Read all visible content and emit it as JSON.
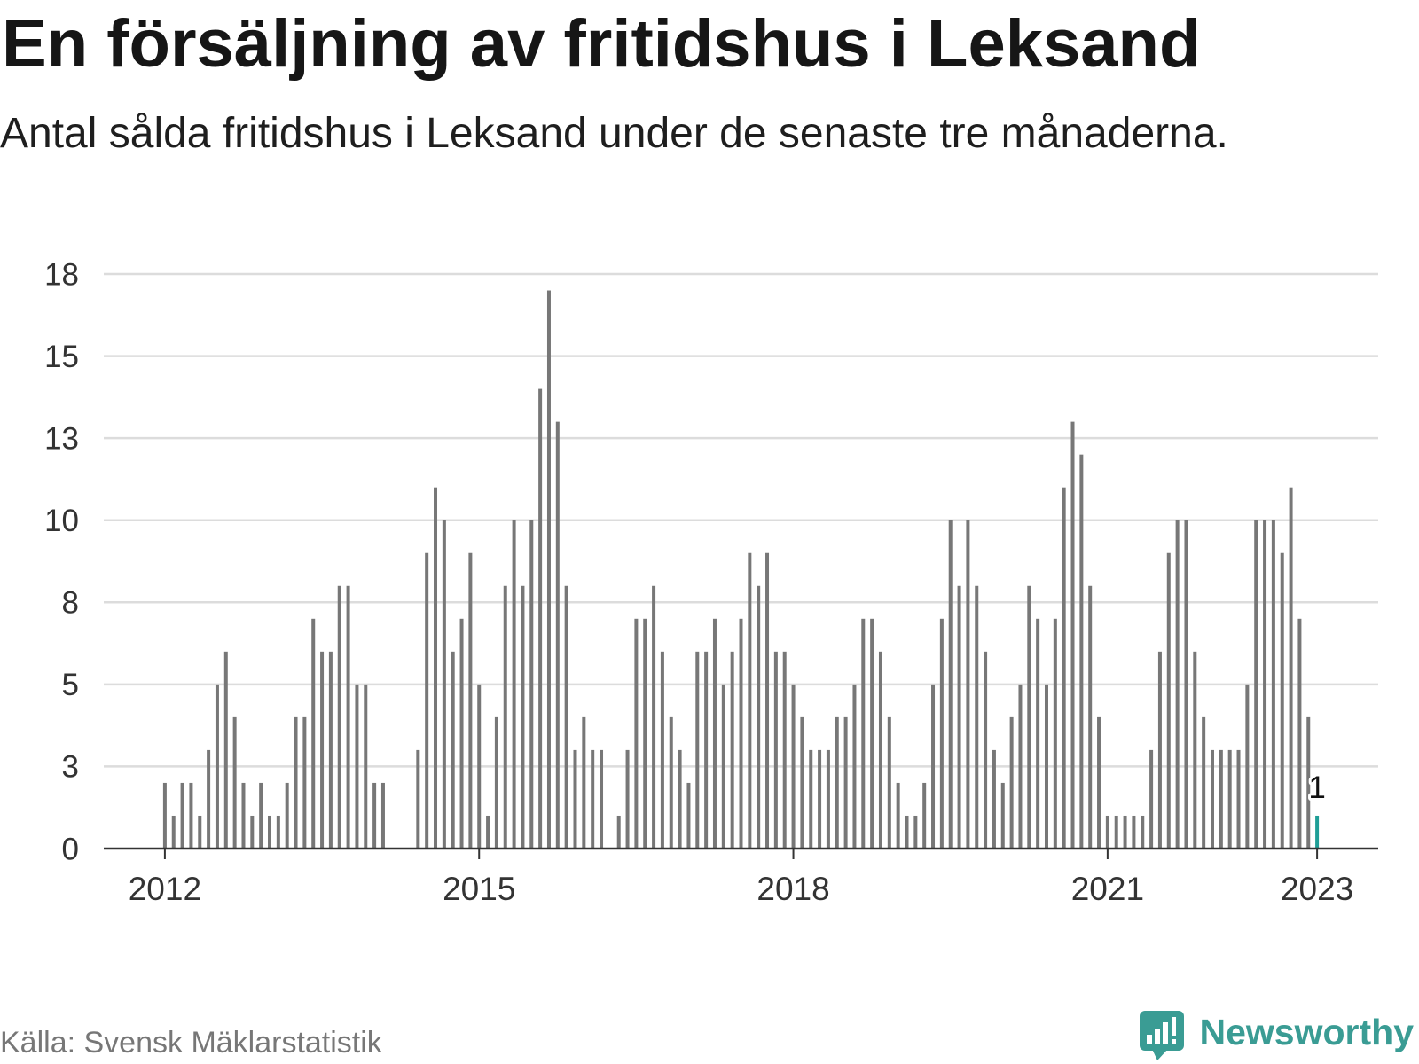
{
  "chart_data": {
    "type": "bar",
    "title": "En försäljning av fritidshus i Leksand",
    "subtitle": "Antal sålda fritidshus i Leksand under de senaste tre månaderna.",
    "x": [
      "2012-01",
      "2012-02",
      "2012-03",
      "2012-04",
      "2012-05",
      "2012-06",
      "2012-07",
      "2012-08",
      "2012-09",
      "2012-10",
      "2012-11",
      "2012-12",
      "2013-01",
      "2013-02",
      "2013-03",
      "2013-04",
      "2013-05",
      "2013-06",
      "2013-07",
      "2013-08",
      "2013-09",
      "2013-10",
      "2013-11",
      "2013-12",
      "2014-01",
      "2014-02",
      "2014-06",
      "2014-07",
      "2014-08",
      "2014-09",
      "2014-10",
      "2014-11",
      "2014-12",
      "2015-01",
      "2015-02",
      "2015-03",
      "2015-04",
      "2015-05",
      "2015-06",
      "2015-07",
      "2015-08",
      "2015-09",
      "2015-10",
      "2015-11",
      "2015-12",
      "2016-01",
      "2016-02",
      "2016-03",
      "2016-05",
      "2016-06",
      "2016-07",
      "2016-08",
      "2016-09",
      "2016-10",
      "2016-11",
      "2016-12",
      "2017-01",
      "2017-02",
      "2017-03",
      "2017-04",
      "2017-05",
      "2017-06",
      "2017-07",
      "2017-08",
      "2017-09",
      "2017-10",
      "2017-11",
      "2017-12",
      "2018-01",
      "2018-02",
      "2018-03",
      "2018-04",
      "2018-05",
      "2018-06",
      "2018-07",
      "2018-08",
      "2018-09",
      "2018-10",
      "2018-11",
      "2018-12",
      "2019-01",
      "2019-02",
      "2019-03",
      "2019-04",
      "2019-05",
      "2019-06",
      "2019-07",
      "2019-08",
      "2019-09",
      "2019-10",
      "2019-11",
      "2019-12",
      "2020-01",
      "2020-02",
      "2020-03",
      "2020-04",
      "2020-05",
      "2020-06",
      "2020-07",
      "2020-08",
      "2020-09",
      "2020-10",
      "2020-11",
      "2020-12",
      "2021-01",
      "2021-02",
      "2021-03",
      "2021-04",
      "2021-05",
      "2021-06",
      "2021-07",
      "2021-08",
      "2021-09",
      "2021-10",
      "2021-11",
      "2021-12",
      "2022-01",
      "2022-02",
      "2022-03",
      "2022-04",
      "2022-05",
      "2022-06",
      "2022-07",
      "2022-08",
      "2022-09",
      "2022-10",
      "2022-11",
      "2022-12",
      "2023-01"
    ],
    "values": [
      2,
      1,
      2,
      2,
      1,
      3,
      5,
      6,
      4,
      2,
      1,
      2,
      1,
      1,
      2,
      4,
      4,
      7,
      6,
      6,
      8,
      8,
      5,
      5,
      2,
      2,
      3,
      9,
      11,
      10,
      6,
      7,
      9,
      5,
      1,
      4,
      8,
      10,
      8,
      10,
      14,
      17,
      13,
      8,
      3,
      4,
      3,
      3,
      1,
      3,
      7,
      7,
      8,
      6,
      4,
      3,
      2,
      6,
      6,
      7,
      5,
      6,
      7,
      9,
      8,
      9,
      6,
      6,
      5,
      4,
      3,
      3,
      3,
      4,
      4,
      5,
      7,
      7,
      6,
      4,
      2,
      1,
      1,
      2,
      5,
      7,
      10,
      8,
      10,
      8,
      6,
      3,
      2,
      4,
      5,
      8,
      7,
      5,
      7,
      11,
      13,
      12,
      8,
      4,
      1,
      1,
      1,
      1,
      1,
      3,
      6,
      9,
      10,
      10,
      6,
      4,
      3,
      3,
      3,
      3,
      5,
      10,
      10,
      10,
      9,
      11,
      7,
      4,
      1
    ],
    "xlim": [
      "2011-06",
      "2023-08"
    ],
    "ylim": [
      0,
      17.5
    ],
    "y_ticks": [
      0,
      2.5,
      5,
      7.5,
      10,
      12.5,
      15,
      17.5
    ],
    "y_tick_labels": [
      "0",
      "3",
      "5",
      "8",
      "10",
      "13",
      "15",
      "18"
    ],
    "x_ticks": [
      "2012-01",
      "2015-01",
      "2018-01",
      "2021-01",
      "2023-01"
    ],
    "x_tick_labels": [
      "2012",
      "2015",
      "2018",
      "2021",
      "2023"
    ],
    "grid": true,
    "bar_color": "#777777",
    "highlight": {
      "x": "2023-01",
      "color": "#1f9e96"
    },
    "data_labels": [
      {
        "x": "2023-01",
        "text": "1"
      }
    ]
  },
  "footer": {
    "source": "Källa: Svensk Mäklarstatistik",
    "brand": "Newsworthy",
    "brand_color": "#3a9c94",
    "brand_icon": "newsworthy-logo-icon"
  }
}
